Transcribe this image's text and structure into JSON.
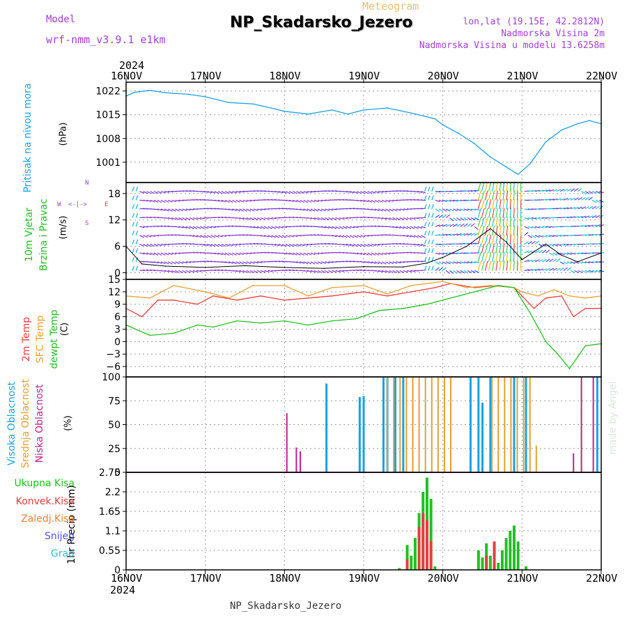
{
  "header": {
    "model_label": "Model",
    "model_name": "wrf-nmm_v3.9.1 e1km",
    "meteogram_label": "Meteogram",
    "station_title": "NP_Skadarsko_Jezero",
    "lonlat": "lon,lat (19.15E, 42.2812N)",
    "elevation": "Nadmorska Visina 2m",
    "model_elevation": "Nadmorska Visina u modelu 13.6258m",
    "footer_title": "NP_Skadarsko_Jezero",
    "watermark": "made by Angel"
  },
  "time_axis": {
    "top_year": "2024",
    "bottom_year": "2024",
    "days": [
      "16NOV",
      "17NOV",
      "18NOV",
      "19NOV",
      "20NOV",
      "21NOV",
      "22NOV"
    ]
  },
  "panel_labels": {
    "pressure": [
      "Pritisak na nivou mora",
      "(hPa)"
    ],
    "wind": [
      "10m Vjetar",
      "Brzina i Pravac",
      "(m/s)"
    ],
    "compass": {
      "n": "N",
      "s": "S",
      "w": "W",
      "e": "E",
      "glyph": "<-|->"
    },
    "temp": [
      "2m Temp",
      "SFC Temp",
      "dewpt Temp",
      "(C)"
    ],
    "cloud": [
      "Visoka Oblacnost",
      "Srednja Oblacnost",
      "Niska Oblacnost",
      "(%)"
    ],
    "precip_unit": "1hr Precip (mm)",
    "precip_legend": [
      "Ukupna Kisa",
      "Konvek.Kisa",
      "Zaledj.Kisa",
      "Snijeg",
      "Grad"
    ]
  },
  "colors": {
    "pressure": "#1aa0e6",
    "temp2m": "#e8403a",
    "sfc": "#e8a030",
    "dewpt": "#20c020",
    "cloud_high": "#1aa0e6",
    "cloud_mid": "#e0a030",
    "cloud_low": "#c0208a",
    "precip_total": "#20c020",
    "precip_conv": "#e04040",
    "precip_frz": "#f08030",
    "precip_snow": "#5050e0",
    "precip_hail": "#30c0c0",
    "model_purple": "#a040d0",
    "meteogram_gold": "#e8c070"
  },
  "chart_data": [
    {
      "type": "line",
      "title": "Pritisak na nivou mora",
      "ylabel": "(hPa)",
      "ylim": [
        995,
        1024.6
      ],
      "yticks": [
        1001,
        1008,
        1015,
        1022
      ],
      "x_days": [
        0,
        0.1,
        0.3,
        0.5,
        0.8,
        1.0,
        1.3,
        1.6,
        1.9,
        2.0,
        2.3,
        2.6,
        2.8,
        3.0,
        3.3,
        3.6,
        3.9,
        4.0,
        4.2,
        4.4,
        4.6,
        4.8,
        4.95,
        5.1,
        5.3,
        5.5,
        5.7,
        5.85,
        6.0
      ],
      "values": [
        1020.5,
        1021.6,
        1022.2,
        1021.5,
        1021.0,
        1020.3,
        1018.6,
        1018.2,
        1016.6,
        1016.0,
        1015.2,
        1016.4,
        1015.2,
        1016.4,
        1017.0,
        1015.5,
        1013.8,
        1012.0,
        1009.5,
        1006.5,
        1002.5,
        999.6,
        997.4,
        1000.5,
        1007.0,
        1010.5,
        1012.3,
        1013.3,
        1012.3
      ]
    },
    {
      "type": "line",
      "title": "10m Vjetar Brzina i Pravac",
      "ylabel": "(m/s)",
      "ylim": [
        -1.5,
        20.5
      ],
      "yticks": [
        0,
        6,
        12,
        18
      ],
      "x_days": [
        0,
        0.2,
        0.5,
        1.0,
        1.5,
        2.0,
        2.5,
        3.0,
        3.5,
        3.8,
        4.0,
        4.3,
        4.6,
        4.8,
        5.0,
        5.3,
        5.5,
        5.7,
        6.0
      ],
      "values": [
        6,
        2,
        1.5,
        1.2,
        1.6,
        1.2,
        1.0,
        1.4,
        1.3,
        2.2,
        3.5,
        6.0,
        10.0,
        7.0,
        3.0,
        6.5,
        4.0,
        2.5,
        4.5
      ]
    },
    {
      "type": "line",
      "title": "Temperature",
      "ylabel": "(C)",
      "ylim": [
        -8.5,
        15
      ],
      "yticks": [
        -6,
        -3,
        0,
        3,
        6,
        9,
        12,
        15
      ],
      "series": [
        {
          "name": "2m Temp",
          "x_days": [
            0,
            0.2,
            0.4,
            0.6,
            0.9,
            1.1,
            1.4,
            1.7,
            2.0,
            2.3,
            2.6,
            3.0,
            3.3,
            3.6,
            3.9,
            4.1,
            4.4,
            4.7,
            4.9,
            5.0,
            5.15,
            5.3,
            5.5,
            5.65,
            5.8,
            6.0
          ],
          "values": [
            8,
            6,
            10,
            10,
            9,
            11,
            10,
            11,
            10,
            10.5,
            11,
            12,
            11,
            12,
            13,
            14,
            13,
            13.5,
            13,
            11,
            8,
            10.5,
            11,
            6,
            8,
            8
          ]
        },
        {
          "name": "SFC Temp",
          "x_days": [
            0,
            0.3,
            0.6,
            1.0,
            1.3,
            1.6,
            2.0,
            2.3,
            2.6,
            3.0,
            3.3,
            3.6,
            4.0,
            4.3,
            4.6,
            4.9,
            5.0,
            5.2,
            5.4,
            5.6,
            5.8,
            6.0
          ],
          "values": [
            11,
            10.5,
            13.5,
            12,
            10.5,
            13.5,
            13.5,
            11,
            13,
            13.5,
            11.5,
            13.5,
            14.5,
            13,
            13.5,
            13,
            12,
            11,
            12.5,
            11,
            10.5,
            11
          ]
        },
        {
          "name": "dewpt Temp",
          "x_days": [
            0,
            0.3,
            0.6,
            0.9,
            1.1,
            1.4,
            1.7,
            2.0,
            2.3,
            2.6,
            2.9,
            3.2,
            3.5,
            3.8,
            4.1,
            4.4,
            4.7,
            4.9,
            5.1,
            5.3,
            5.45,
            5.6,
            5.8,
            6.0
          ],
          "values": [
            4,
            1.5,
            2,
            4,
            3.5,
            5,
            4.5,
            5,
            4,
            5,
            5.5,
            7.5,
            8,
            9,
            10.5,
            12,
            13.5,
            13,
            7,
            0,
            -3,
            -6.5,
            -1,
            -0.5
          ]
        }
      ]
    },
    {
      "type": "bar",
      "title": "Oblacnost",
      "ylabel": "(%)",
      "ylim": [
        0,
        100
      ],
      "yticks": [
        0,
        25,
        50,
        75,
        100
      ],
      "series": [
        {
          "name": "Visoka Oblacnost",
          "x_days": [
            2.53,
            2.95,
            3.0,
            3.25,
            3.3,
            3.4,
            3.5,
            4.35,
            4.45,
            4.5,
            4.6,
            4.9,
            5.05,
            5.95
          ],
          "values": [
            93,
            79,
            80,
            100,
            100,
            100,
            100,
            100,
            100,
            73,
            100,
            100,
            100,
            100
          ]
        },
        {
          "name": "Srednja Oblacnost",
          "x_days": [
            3.3,
            3.38,
            3.46,
            3.54,
            3.62,
            3.7,
            3.78,
            3.86,
            3.94,
            4.02,
            4.1,
            4.62,
            4.7,
            4.78,
            4.86,
            4.94,
            5.02,
            5.1,
            5.18
          ],
          "values": [
            100,
            100,
            100,
            100,
            100,
            100,
            100,
            100,
            100,
            100,
            100,
            100,
            100,
            100,
            100,
            100,
            100,
            100,
            28
          ]
        },
        {
          "name": "Niska Oblacnost",
          "x_days": [
            2.03,
            2.15,
            2.2,
            5.65,
            5.75,
            5.9
          ],
          "values": [
            62,
            26,
            22,
            20,
            100,
            100
          ]
        }
      ]
    },
    {
      "type": "bar",
      "title": "1hr Precip",
      "ylabel": "1hr Precip (mm)",
      "ylim": [
        0,
        2.75
      ],
      "yticks": [
        0,
        0.55,
        1.1,
        1.65,
        2.2,
        2.75
      ],
      "series": [
        {
          "name": "Ukupna Kisa",
          "x_days": [
            3.45,
            3.55,
            3.6,
            3.65,
            3.7,
            3.75,
            3.8,
            3.85,
            3.9,
            4.45,
            4.5,
            4.55,
            4.6,
            4.65,
            4.7,
            4.75,
            4.8,
            4.85,
            4.9,
            4.95,
            5.05
          ],
          "values": [
            0.05,
            0.7,
            0.4,
            0.9,
            1.6,
            2.2,
            2.6,
            2.0,
            0.1,
            0.55,
            0.35,
            0.75,
            0.4,
            0.15,
            0.2,
            0.55,
            0.9,
            1.1,
            1.25,
            0.8,
            0.1
          ]
        },
        {
          "name": "Konvek.Kisa",
          "x_days": [
            3.55,
            3.7,
            3.75,
            3.8,
            3.85,
            4.55,
            4.65
          ],
          "values": [
            0.3,
            1.2,
            1.6,
            1.4,
            0.8,
            0.4,
            0.8
          ]
        }
      ]
    }
  ]
}
